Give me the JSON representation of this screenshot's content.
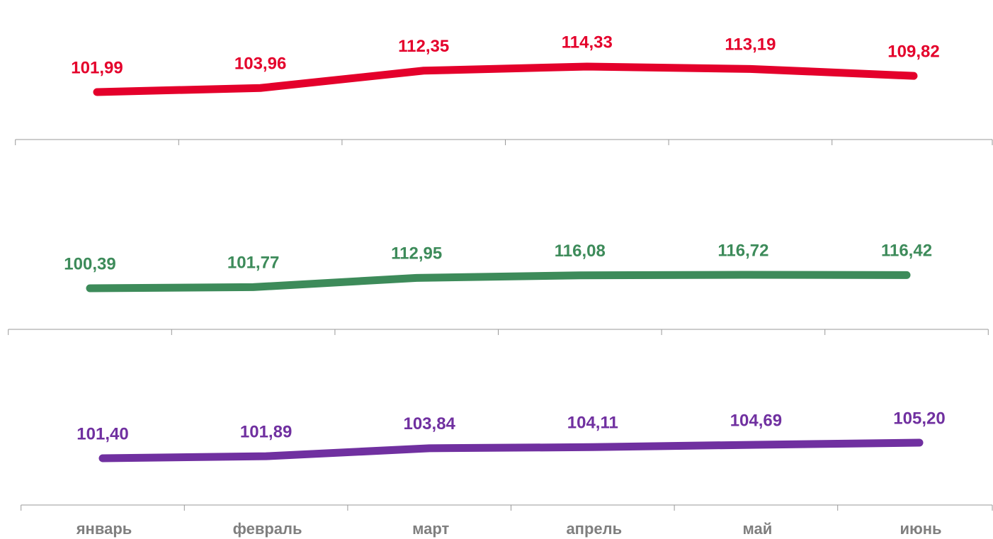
{
  "chart_data": {
    "type": "line",
    "categories": [
      "январь",
      "февраль",
      "март",
      "апрель",
      "май",
      "июнь"
    ],
    "series": [
      {
        "color": "#e4002b",
        "values": [
          101.99,
          103.96,
          112.35,
          114.33,
          113.19,
          109.82
        ],
        "value_labels": [
          "101,99",
          "103,96",
          "112,35",
          "114,33",
          "113,19",
          "109,82"
        ]
      },
      {
        "color": "#3d8b5a",
        "values": [
          100.39,
          101.77,
          112.95,
          116.08,
          116.72,
          116.42
        ],
        "value_labels": [
          "100,39",
          "101,77",
          "112,95",
          "116,08",
          "116,72",
          "116,42"
        ]
      },
      {
        "color": "#7030a0",
        "values": [
          101.4,
          101.89,
          103.84,
          104.11,
          104.69,
          105.2
        ],
        "value_labels": [
          "101,40",
          "101,89",
          "103,84",
          "104,11",
          "104,69",
          "105,20"
        ]
      }
    ]
  }
}
